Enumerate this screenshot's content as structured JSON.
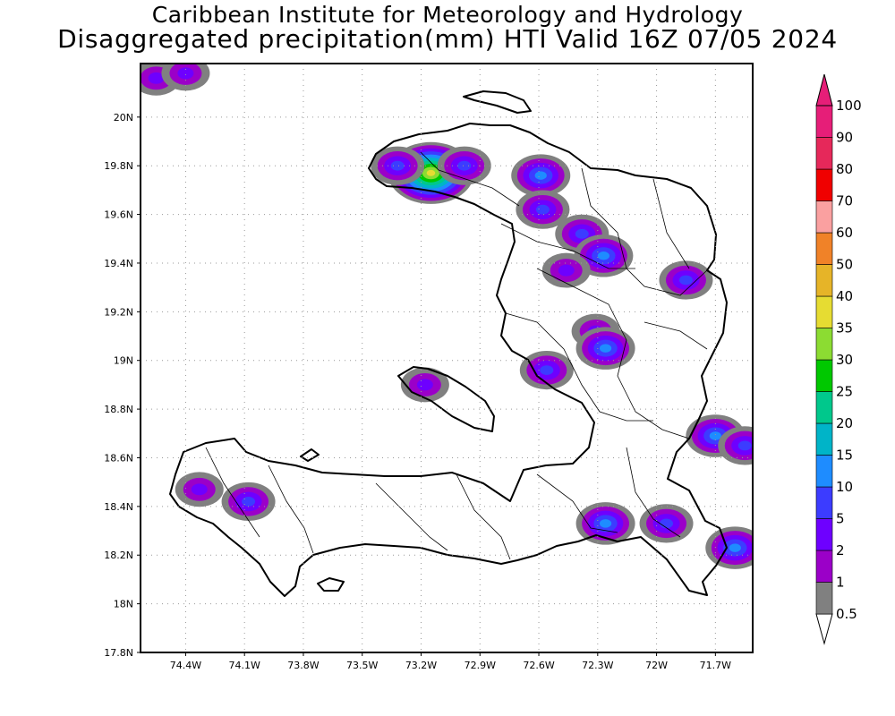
{
  "title_line1": "Caribbean Institute for Meteorology and Hydrology",
  "title_line2": "Disaggregated precipitation(mm) HTI Valid 16Z 07/05 2024",
  "map": {
    "lon_range": [
      -74.63,
      -71.51
    ],
    "lat_range": [
      17.8,
      20.22
    ],
    "lat_ticks": [
      "20N",
      "19.8N",
      "19.6N",
      "19.4N",
      "19.2N",
      "19N",
      "18.8N",
      "18.6N",
      "18.4N",
      "18.2N",
      "18N",
      "17.8N"
    ],
    "lon_ticks": [
      "74.4W",
      "74.1W",
      "73.8W",
      "73.5W",
      "73.2W",
      "72.9W",
      "72.6W",
      "72.3W",
      "72W",
      "71.7W"
    ],
    "grid": "dotted"
  },
  "colorbar": {
    "labels": [
      "0.5",
      "1",
      "2",
      "5",
      "10",
      "15",
      "20",
      "25",
      "30",
      "35",
      "40",
      "50",
      "60",
      "70",
      "80",
      "90",
      "100"
    ],
    "colors": [
      "#ffffff",
      "#808080",
      "#9b00c8",
      "#6e00ff",
      "#3c3cff",
      "#1e8cff",
      "#00b4c8",
      "#00c88c",
      "#00c800",
      "#8cdc32",
      "#e6dc32",
      "#e6b428",
      "#f08228",
      "#faa0a0",
      "#f00000",
      "#e6285a",
      "#e61e78"
    ]
  },
  "rain_cells": [
    {
      "lon": -73.15,
      "lat": 19.77,
      "intensity": 40
    },
    {
      "lon": -73.32,
      "lat": 19.8,
      "intensity": 10
    },
    {
      "lon": -72.98,
      "lat": 19.8,
      "intensity": 10
    },
    {
      "lon": -72.59,
      "lat": 19.76,
      "intensity": 15
    },
    {
      "lon": -72.58,
      "lat": 19.62,
      "intensity": 10
    },
    {
      "lon": -72.38,
      "lat": 19.52,
      "intensity": 10
    },
    {
      "lon": -72.27,
      "lat": 19.43,
      "intensity": 15
    },
    {
      "lon": -72.46,
      "lat": 19.37,
      "intensity": 5
    },
    {
      "lon": -71.85,
      "lat": 19.33,
      "intensity": 10
    },
    {
      "lon": -72.31,
      "lat": 19.12,
      "intensity": 5
    },
    {
      "lon": -72.26,
      "lat": 19.05,
      "intensity": 15
    },
    {
      "lon": -72.56,
      "lat": 18.96,
      "intensity": 10
    },
    {
      "lon": -73.18,
      "lat": 18.9,
      "intensity": 5
    },
    {
      "lon": -71.7,
      "lat": 18.69,
      "intensity": 15
    },
    {
      "lon": -71.55,
      "lat": 18.65,
      "intensity": 10
    },
    {
      "lon": -74.33,
      "lat": 18.47,
      "intensity": 5
    },
    {
      "lon": -74.08,
      "lat": 18.42,
      "intensity": 10
    },
    {
      "lon": -72.26,
      "lat": 18.33,
      "intensity": 15
    },
    {
      "lon": -71.95,
      "lat": 18.33,
      "intensity": 10
    },
    {
      "lon": -71.6,
      "lat": 18.23,
      "intensity": 15
    },
    {
      "lon": -74.55,
      "lat": 20.16,
      "intensity": 5
    },
    {
      "lon": -74.4,
      "lat": 20.18,
      "intensity": 5
    }
  ]
}
